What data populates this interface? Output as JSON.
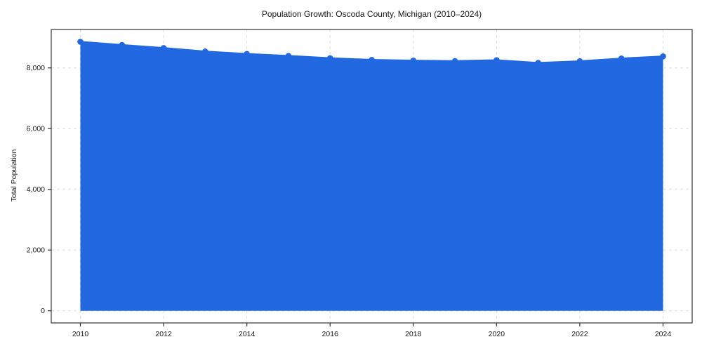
{
  "chart_data": {
    "type": "area",
    "title": "Population Growth: Oscoda County, Michigan (2010–2024)",
    "xlabel": "",
    "ylabel": "Total Population",
    "x": [
      2010,
      2011,
      2012,
      2013,
      2014,
      2015,
      2016,
      2017,
      2018,
      2019,
      2020,
      2021,
      2022,
      2023,
      2024
    ],
    "series": [
      {
        "name": "Total Population",
        "values": [
          8860,
          8755,
          8655,
          8540,
          8460,
          8395,
          8320,
          8265,
          8240,
          8225,
          8255,
          8165,
          8220,
          8310,
          8380
        ]
      }
    ],
    "xticks": [
      {
        "value": 2010,
        "label": "2010"
      },
      {
        "value": 2012,
        "label": "2012"
      },
      {
        "value": 2014,
        "label": "2014"
      },
      {
        "value": 2016,
        "label": "2016"
      },
      {
        "value": 2018,
        "label": "2018"
      },
      {
        "value": 2020,
        "label": "2020"
      },
      {
        "value": 2022,
        "label": "2022"
      },
      {
        "value": 2024,
        "label": "2024"
      }
    ],
    "yticks": [
      {
        "value": 0,
        "label": "0"
      },
      {
        "value": 2000,
        "label": "2,000"
      },
      {
        "value": 4000,
        "label": "4,000"
      },
      {
        "value": 6000,
        "label": "6,000"
      },
      {
        "value": 8000,
        "label": "8,000"
      }
    ],
    "xlim": [
      2009.3,
      2024.7
    ],
    "ylim": [
      -400,
      9265
    ],
    "grid": true,
    "legend": false,
    "fill_baseline": 0,
    "colors": {
      "line": "#2268e0",
      "marker": "#2268e0",
      "fill": "#2268e0",
      "fill_opacity": 0.1,
      "grid": "#dcdcdc",
      "spine": "#333333",
      "tick": "#333333",
      "text": "#1a1a1a",
      "background": "#ffffff"
    }
  }
}
